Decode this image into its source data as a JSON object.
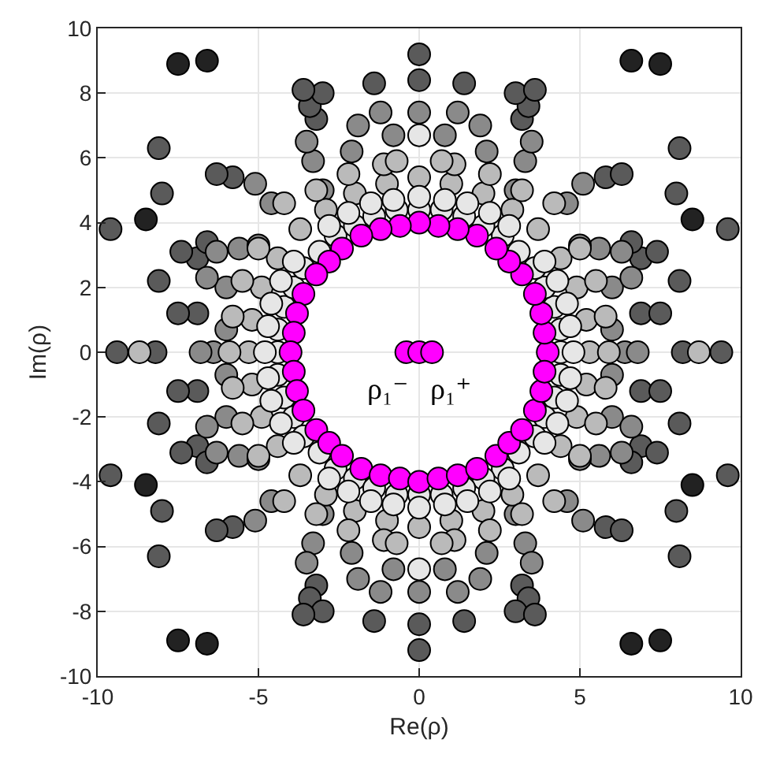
{
  "chart_data": {
    "type": "scatter",
    "xlabel": "Re(ρ)",
    "ylabel": "Im(ρ)",
    "xlim": [
      -10,
      10
    ],
    "xticks": [
      -10,
      -5,
      0,
      5,
      10
    ],
    "ylim": [
      -10,
      10
    ],
    "yticks": [
      -10,
      -8,
      -6,
      -4,
      -2,
      0,
      2,
      4,
      6,
      8,
      10
    ],
    "grid": true,
    "marker": "circle",
    "series": [
      {
        "color": "#222222",
        "x": [
          6.6,
          7.5,
          8.5,
          -6.6,
          -7.5,
          -8.5,
          -6.6,
          -7.5,
          -8.5,
          6.6,
          7.5,
          8.5
        ],
        "values": [
          9.0,
          8.9,
          4.1,
          9.0,
          8.9,
          4.1,
          -9.0,
          -8.9,
          -4.1,
          -9.0,
          -8.9,
          -4.1
        ]
      },
      {
        "color": "#5a5a5a",
        "x": [
          6.9,
          7.5,
          8.1,
          6.9,
          7.4,
          6.6,
          5.8,
          6.3,
          8.0,
          8.1,
          9.6,
          3.2,
          3.4,
          1.4,
          3.0,
          3.6,
          -6.9,
          -7.5,
          -8.1,
          -6.9,
          -7.4,
          -6.6,
          -5.8,
          -6.3,
          -8.0,
          -8.1,
          -9.6,
          -3.2,
          -3.4,
          -1.4,
          -3.0,
          -3.6,
          -6.9,
          -7.5,
          -8.1,
          -6.9,
          -7.4,
          -6.6,
          -5.8,
          -6.3,
          -8.0,
          -8.1,
          -9.6,
          -3.2,
          -3.4,
          -1.4,
          -3.0,
          -3.6,
          6.9,
          7.5,
          8.1,
          6.9,
          7.4,
          6.6,
          5.8,
          6.3,
          8.0,
          8.1,
          9.6,
          3.2,
          3.4,
          1.4,
          3.0,
          3.6,
          8.2,
          9.4,
          -8.2,
          -9.4,
          0,
          0,
          0,
          0
        ],
        "values": [
          1.2,
          1.2,
          2.2,
          2.9,
          3.1,
          3.4,
          5.4,
          5.5,
          4.9,
          6.3,
          3.8,
          7.2,
          7.6,
          8.3,
          8.0,
          8.1,
          1.2,
          1.2,
          2.2,
          2.9,
          3.1,
          3.4,
          5.4,
          5.5,
          4.9,
          6.3,
          3.8,
          7.2,
          7.6,
          8.3,
          8.0,
          8.1,
          -1.2,
          -1.2,
          -2.2,
          -2.9,
          -3.1,
          -3.4,
          -5.4,
          -5.5,
          -4.9,
          -6.3,
          -3.8,
          -7.2,
          -7.6,
          -8.3,
          -8.0,
          -8.1,
          -1.2,
          -1.2,
          -2.2,
          -2.9,
          -3.1,
          -3.4,
          -5.4,
          -5.5,
          -4.9,
          -6.3,
          -3.8,
          -7.2,
          -7.6,
          -8.3,
          -8.0,
          -8.1,
          0,
          0,
          0,
          0,
          8.4,
          -8.4,
          9.2,
          -9.2
        ]
      },
      {
        "color": "#8a8a8a",
        "x": [
          6.0,
          5.6,
          5.0,
          6.3,
          3.3,
          3.5,
          2.1,
          1.9,
          0.8,
          1.2,
          5.1,
          4.6,
          6.0,
          6.6,
          3.0,
          -6.0,
          -5.6,
          -5.0,
          -6.3,
          -3.3,
          -3.5,
          -2.1,
          -1.9,
          -0.8,
          -1.2,
          -5.1,
          -4.6,
          -6.0,
          -6.6,
          -3.0,
          -6.0,
          -5.6,
          -5.0,
          -6.3,
          -3.3,
          -3.5,
          -2.1,
          -1.9,
          -0.8,
          -1.2,
          -5.1,
          -4.6,
          -6.0,
          -6.6,
          -3.0,
          6.0,
          5.6,
          5.0,
          6.3,
          3.3,
          3.5,
          2.1,
          1.9,
          0.8,
          1.2,
          5.1,
          4.6,
          6.0,
          6.6,
          3.0,
          6.4,
          6.8,
          -6.4,
          -6.8,
          0,
          0
        ],
        "values": [
          0.7,
          3.2,
          3.3,
          3.1,
          5.9,
          6.5,
          6.2,
          7.0,
          6.7,
          7.4,
          5.2,
          4.6,
          2.0,
          2.3,
          5.0,
          0.7,
          3.2,
          3.3,
          3.1,
          5.9,
          6.5,
          6.2,
          7.0,
          6.7,
          7.4,
          5.2,
          4.6,
          2.0,
          2.3,
          5.0,
          -0.7,
          -3.2,
          -3.3,
          -3.1,
          -5.9,
          -6.5,
          -6.2,
          -7.0,
          -6.7,
          -7.4,
          -5.2,
          -4.6,
          -2.0,
          -2.3,
          -5.0,
          -0.7,
          -3.2,
          -3.3,
          -3.1,
          -5.9,
          -6.5,
          -6.2,
          -7.0,
          -6.7,
          -7.4,
          -5.2,
          -4.6,
          -2.0,
          -2.3,
          -5.0,
          0,
          0,
          0,
          0,
          7.4,
          -7.4
        ]
      },
      {
        "color": "#bababa",
        "x": [
          5.2,
          4.9,
          4.4,
          3.7,
          2.9,
          2.0,
          1.0,
          5.8,
          5.5,
          5.0,
          3.2,
          2.2,
          1.1,
          4.2,
          0.7,
          -5.2,
          -4.9,
          -4.4,
          -3.7,
          -2.9,
          -2.0,
          -1.0,
          -5.8,
          -5.5,
          -5.0,
          -3.2,
          -2.2,
          -1.1,
          -4.2,
          -0.7,
          -5.2,
          -4.9,
          -4.4,
          -3.7,
          -2.9,
          -2.0,
          -1.0,
          -5.8,
          -5.5,
          -5.0,
          -3.2,
          -2.2,
          -1.1,
          -4.2,
          -0.7,
          5.2,
          4.9,
          4.4,
          3.7,
          2.9,
          2.0,
          1.0,
          5.8,
          5.5,
          5.0,
          3.2,
          2.2,
          1.1,
          4.2,
          0.7,
          5.3,
          5.9,
          8.7,
          -5.3,
          -5.9,
          -8.7,
          0,
          0
        ],
        "values": [
          1.0,
          2.0,
          2.9,
          3.8,
          4.4,
          4.9,
          5.2,
          1.1,
          2.2,
          3.2,
          5.0,
          5.5,
          5.8,
          4.6,
          5.9,
          1.0,
          2.0,
          2.9,
          3.8,
          4.4,
          4.9,
          5.2,
          1.1,
          2.2,
          3.2,
          5.0,
          5.5,
          5.8,
          4.6,
          5.9,
          -1.0,
          -2.0,
          -2.9,
          -3.8,
          -4.4,
          -4.9,
          -5.2,
          -1.1,
          -2.2,
          -3.2,
          -5.0,
          -5.5,
          -5.8,
          -4.6,
          -5.9,
          -1.0,
          -2.0,
          -2.9,
          -3.8,
          -4.4,
          -4.9,
          -5.2,
          -1.1,
          -2.2,
          -3.2,
          -5.0,
          -5.5,
          -5.8,
          -4.6,
          -5.9,
          0,
          0,
          0,
          0,
          0,
          0,
          5.4,
          -5.4
        ]
      },
      {
        "color": "#e6e6e6",
        "x": [
          4.4,
          4.2,
          3.9,
          3.6,
          3.1,
          2.6,
          2.0,
          1.4,
          0.7,
          4.7,
          4.6,
          4.3,
          3.9,
          2.8,
          2.2,
          1.5,
          0.8,
          -4.4,
          -4.2,
          -3.9,
          -3.6,
          -3.1,
          -2.6,
          -2.0,
          -1.4,
          -0.7,
          -4.7,
          -4.6,
          -4.3,
          -3.9,
          -2.8,
          -2.2,
          -1.5,
          -0.8,
          -4.4,
          -4.2,
          -3.9,
          -3.6,
          -3.1,
          -2.6,
          -2.0,
          -1.4,
          -0.7,
          -4.7,
          -4.6,
          -4.3,
          -3.9,
          -2.8,
          -2.2,
          -1.5,
          -0.8,
          4.4,
          4.2,
          3.9,
          3.6,
          3.1,
          2.6,
          2.0,
          1.4,
          0.7,
          4.7,
          4.6,
          4.3,
          3.9,
          2.8,
          2.2,
          1.5,
          0.8,
          4.4,
          4.8,
          -4.4,
          -4.8,
          0,
          0,
          0,
          0,
          0,
          0
        ],
        "values": [
          0.7,
          1.4,
          2.0,
          2.6,
          3.1,
          3.6,
          3.9,
          4.2,
          4.4,
          0.8,
          1.5,
          2.2,
          2.8,
          3.9,
          4.3,
          4.6,
          4.7,
          0.7,
          1.4,
          2.0,
          2.6,
          3.1,
          3.6,
          3.9,
          4.2,
          4.4,
          0.8,
          1.5,
          2.2,
          2.8,
          3.9,
          4.3,
          4.6,
          4.7,
          -0.7,
          -1.4,
          -2.0,
          -2.6,
          -3.1,
          -3.6,
          -3.9,
          -4.2,
          -4.4,
          -0.8,
          -1.5,
          -2.2,
          -2.8,
          -3.9,
          -4.3,
          -4.6,
          -4.7,
          -0.7,
          -1.4,
          -2.0,
          -2.6,
          -3.1,
          -3.6,
          -3.9,
          -4.2,
          -4.4,
          -0.8,
          -1.5,
          -2.2,
          -2.8,
          -3.9,
          -4.3,
          -4.6,
          -4.7,
          0,
          0,
          0,
          0,
          4.4,
          4.8,
          6.7,
          -4.4,
          -4.8,
          -6.7
        ]
      },
      {
        "color": "#ff00ff",
        "x": [
          4,
          3.9,
          3.8,
          3.6,
          3.2,
          2.8,
          2.4,
          1.8,
          1.2,
          0.6,
          0,
          -0.6,
          -1.2,
          -1.8,
          -2.4,
          -2.8,
          -3.2,
          -3.6,
          -3.8,
          -3.9,
          -4,
          -3.9,
          -3.8,
          -3.6,
          -3.2,
          -2.8,
          -2.4,
          -1.8,
          -1.2,
          -0.6,
          0,
          0.6,
          1.2,
          1.8,
          2.4,
          2.8,
          3.2,
          3.6,
          3.8,
          3.9,
          -0.4,
          0,
          0.4
        ],
        "values": [
          0,
          0.6,
          1.2,
          1.8,
          2.4,
          2.8,
          3.2,
          3.6,
          3.8,
          3.9,
          4,
          3.9,
          3.8,
          3.6,
          3.2,
          2.8,
          2.4,
          1.8,
          1.2,
          0.6,
          0,
          -0.6,
          -1.2,
          -1.8,
          -2.4,
          -2.8,
          -3.2,
          -3.6,
          -3.8,
          -3.9,
          -4,
          -3.9,
          -3.8,
          -3.6,
          -3.2,
          -2.8,
          -2.4,
          -1.8,
          -1.2,
          -0.6,
          0,
          0,
          0
        ]
      }
    ],
    "annotations": [
      {
        "text": "ρ₁⁻",
        "x": -0.4,
        "y": 0
      },
      {
        "text": "ρ₁⁺",
        "x": 0.4,
        "y": 0
      }
    ]
  }
}
